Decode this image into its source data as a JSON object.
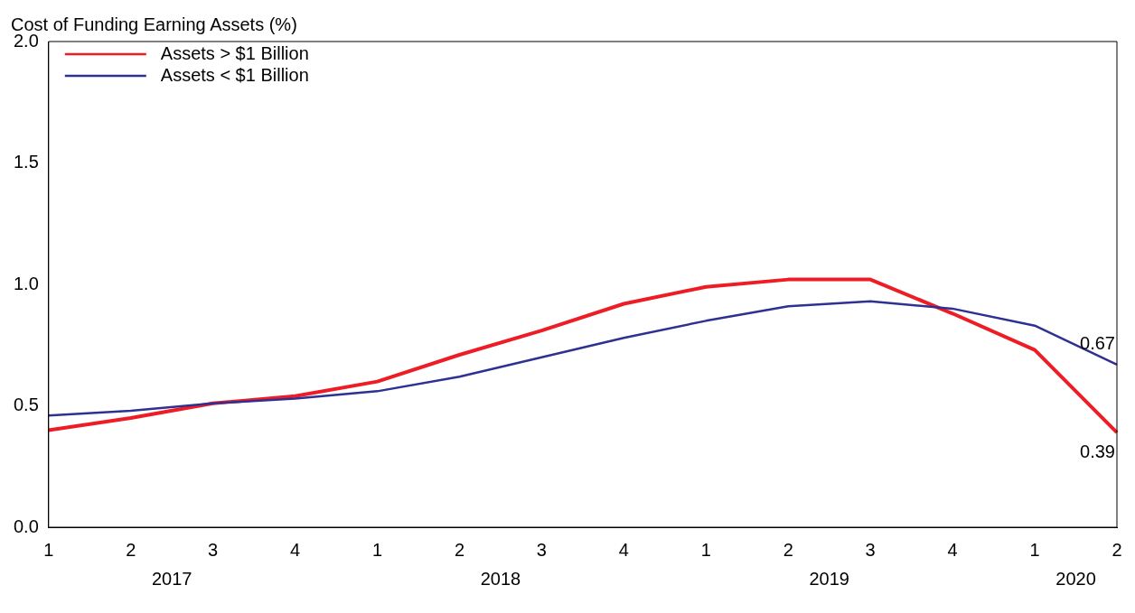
{
  "chart_data": {
    "type": "line",
    "title": "Cost of Funding Earning Assets (%)",
    "categories": [
      "1",
      "2",
      "3",
      "4",
      "1",
      "2",
      "3",
      "4",
      "1",
      "2",
      "3",
      "4",
      "1",
      "2"
    ],
    "series": [
      {
        "name": "Assets > $1 Billion",
        "color": "#ee1c25",
        "values": [
          0.4,
          0.45,
          0.51,
          0.54,
          0.6,
          0.71,
          0.81,
          0.92,
          0.99,
          1.02,
          1.02,
          0.88,
          0.73,
          0.39
        ],
        "value_labels": [
          null,
          null,
          null,
          null,
          null,
          null,
          null,
          null,
          null,
          null,
          null,
          null,
          null,
          "0.39"
        ]
      },
      {
        "name": "Assets < $1 Billion",
        "color": "#2e3192",
        "values": [
          0.46,
          0.48,
          0.51,
          0.53,
          0.56,
          0.62,
          0.7,
          0.78,
          0.85,
          0.91,
          0.93,
          0.9,
          0.83,
          0.67
        ],
        "value_labels": [
          null,
          null,
          null,
          null,
          null,
          null,
          null,
          null,
          null,
          null,
          null,
          null,
          null,
          "0.67"
        ]
      }
    ],
    "annotations": [
      "2017",
      "2018",
      "2019",
      "2020"
    ],
    "ylim": [
      0,
      2
    ],
    "yticks": [
      {
        "value": 0,
        "label": "0.0"
      },
      0.5,
      {
        "value": 1,
        "label": "1.0"
      },
      1.5,
      {
        "value": 2,
        "label": "2.0"
      }
    ],
    "grid": false,
    "legend": "top left",
    "marker": "none",
    "line_style": "solid"
  }
}
